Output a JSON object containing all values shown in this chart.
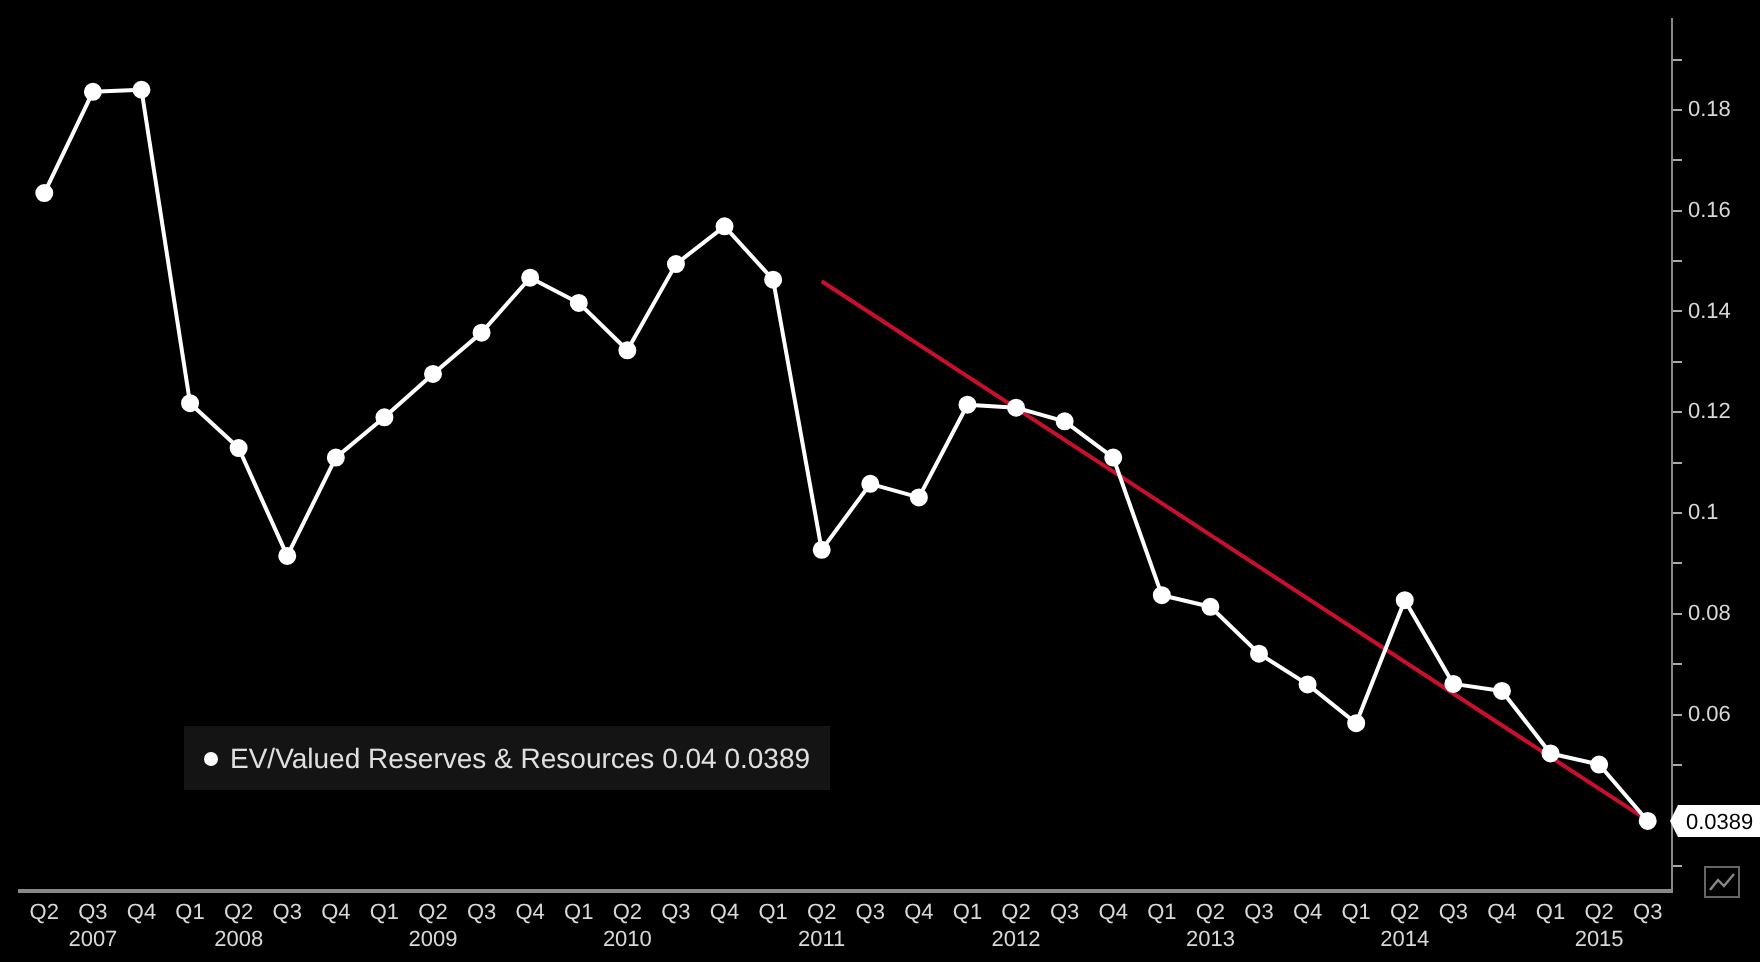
{
  "chart_data": {
    "type": "line",
    "categories": [
      "Q2",
      "Q3\n2007",
      "Q4",
      "Q1",
      "Q2\n2008",
      "Q3",
      "Q4",
      "Q1",
      "Q2\n2009",
      "Q3",
      "Q4",
      "Q1",
      "Q2\n2010",
      "Q3",
      "Q4",
      "Q1",
      "Q2\n2011",
      "Q3",
      "Q4",
      "Q1",
      "Q2\n2012",
      "Q3",
      "Q4",
      "Q1",
      "Q2\n2013",
      "Q3",
      "Q4",
      "Q1",
      "Q2\n2014",
      "Q3",
      "Q4",
      "Q1",
      "Q2\n2015",
      "Q3"
    ],
    "series": [
      {
        "name": "EV/Valued Reserves & Resources 0.04 0.0389",
        "color": "#ffffff",
        "values": [
          0.1635,
          0.1836,
          0.184,
          0.1218,
          0.1129,
          0.0915,
          0.111,
          0.119,
          0.1276,
          0.1358,
          0.1467,
          0.1417,
          0.1323,
          0.1494,
          0.1569,
          0.1463,
          0.0927,
          0.1058,
          0.1031,
          0.1215,
          0.1209,
          0.1182,
          0.111,
          0.0837,
          0.0814,
          0.0721,
          0.066,
          0.0583,
          0.0827,
          0.0661,
          0.0647,
          0.0523,
          0.0501,
          0.0389
        ]
      },
      {
        "type": "line",
        "color": "#c8102e",
        "marker": "none",
        "values": [
          null,
          null,
          null,
          null,
          null,
          null,
          null,
          null,
          null,
          null,
          null,
          null,
          null,
          null,
          null,
          null,
          0.146,
          null,
          null,
          null,
          null,
          null,
          null,
          null,
          null,
          null,
          null,
          null,
          null,
          null,
          null,
          null,
          null,
          0.039
        ]
      }
    ],
    "ylim": [
      0.025,
      0.198
    ],
    "yticks": [
      {
        "value": 0.03,
        "label": null
      },
      {
        "value": 0.05,
        "label": null
      },
      0.06,
      {
        "value": 0.07,
        "label": null
      },
      0.08,
      {
        "value": 0.09,
        "label": null
      },
      0.1,
      {
        "value": 0.11,
        "label": null
      },
      0.12,
      {
        "value": 0.13,
        "label": null
      },
      0.14,
      {
        "value": 0.15,
        "label": null
      },
      0.16,
      {
        "value": 0.17,
        "label": null
      },
      0.18,
      {
        "value": 0.19,
        "label": null
      }
    ],
    "marker": "circle",
    "line_style": "solid",
    "legend": "bottom left",
    "annotations": [
      "0.0389"
    ]
  }
}
